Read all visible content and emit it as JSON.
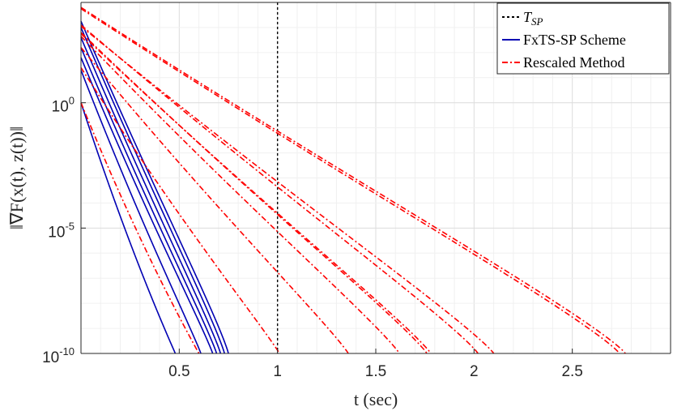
{
  "chart_data": {
    "type": "line",
    "xlabel": "t (sec)",
    "ylabel": "‖∇F(x(t), z(t))‖",
    "xlim": [
      0,
      3.0
    ],
    "ylim_log10": [
      -10,
      4
    ],
    "y_scale": "log",
    "x_ticks": [
      "0.5",
      "1",
      "1.5",
      "2",
      "2.5"
    ],
    "x_tick_values": [
      0.5,
      1,
      1.5,
      2,
      2.5
    ],
    "y_ticks": [
      {
        "base": "10",
        "exp": "0",
        "log10": 0
      },
      {
        "base": "10",
        "exp": "-5",
        "log10": -5
      },
      {
        "base": "10",
        "exp": "-10",
        "log10": -10
      }
    ],
    "grid": true,
    "legend": {
      "placement": "top-right",
      "entries": [
        {
          "label": "T",
          "sub": "SP",
          "style": "dotted",
          "color": "#000000"
        },
        {
          "label": "FxTS-SP Scheme",
          "style": "solid",
          "color": "#0000b3"
        },
        {
          "label": "Rescaled Method",
          "style": "dashdot",
          "color": "#ff0000"
        }
      ]
    },
    "vline": {
      "name": "T_SP",
      "x": 1.0,
      "color": "#000000"
    },
    "series": [
      {
        "group": "FxTS-SP",
        "color": "#0000b3",
        "start_log10": 0.0,
        "end_x": 0.48
      },
      {
        "group": "FxTS-SP",
        "color": "#0000b3",
        "start_log10": 1.3,
        "end_x": 0.61
      },
      {
        "group": "FxTS-SP",
        "color": "#0000b3",
        "start_log10": 1.8,
        "end_x": 0.67
      },
      {
        "group": "FxTS-SP",
        "color": "#0000b3",
        "start_log10": 2.2,
        "end_x": 0.69
      },
      {
        "group": "FxTS-SP",
        "color": "#0000b3",
        "start_log10": 2.6,
        "end_x": 0.71
      },
      {
        "group": "FxTS-SP",
        "color": "#0000b3",
        "start_log10": 3.0,
        "end_x": 0.73
      },
      {
        "group": "FxTS-SP",
        "color": "#0000b3",
        "start_log10": 3.25,
        "end_x": 0.75
      },
      {
        "group": "Rescaled",
        "color": "#ff0000",
        "start_log10": 0.0,
        "end_x": 0.6
      },
      {
        "group": "Rescaled",
        "color": "#ff0000",
        "start_log10": 1.4,
        "end_x": 1.01
      },
      {
        "group": "Rescaled",
        "color": "#ff0000",
        "start_log10": 2.2,
        "end_x": 1.36
      },
      {
        "group": "Rescaled",
        "color": "#ff0000",
        "start_log10": 2.65,
        "end_x": 1.62
      },
      {
        "group": "Rescaled",
        "color": "#ff0000",
        "start_log10": 2.8,
        "end_x": 1.76
      },
      {
        "group": "Rescaled",
        "color": "#ff0000",
        "start_log10": 2.75,
        "end_x": 1.78
      },
      {
        "group": "Rescaled",
        "color": "#ff0000",
        "start_log10": 3.1,
        "end_x": 2.02
      },
      {
        "group": "Rescaled",
        "color": "#ff0000",
        "start_log10": 3.05,
        "end_x": 2.1
      },
      {
        "group": "Rescaled",
        "color": "#ff0000",
        "start_log10": 3.75,
        "end_x": 2.74
      },
      {
        "group": "Rescaled",
        "color": "#ff0000",
        "start_log10": 3.8,
        "end_x": 2.77
      }
    ]
  }
}
